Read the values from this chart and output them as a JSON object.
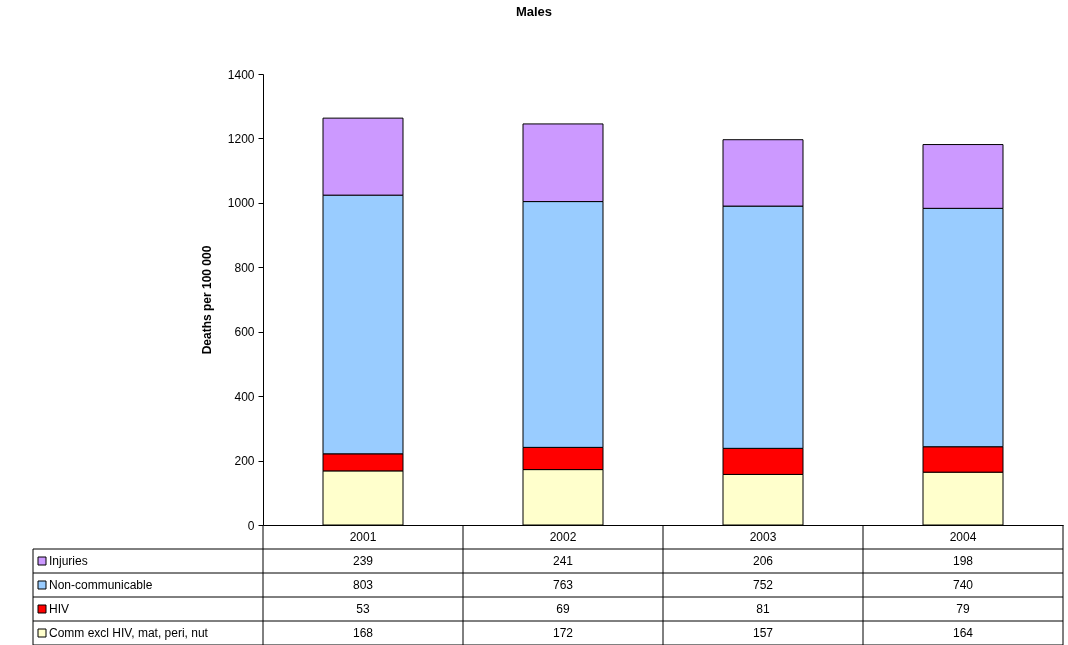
{
  "chart_data": {
    "type": "bar",
    "title": "Males",
    "ylabel": "Deaths per 100 000",
    "categories": [
      "2001",
      "2002",
      "2003",
      "2004"
    ],
    "series": [
      {
        "name": "Comm excl HIV, mat, peri, nut",
        "color": "#ffffcc",
        "values": [
          168,
          172,
          157,
          164
        ]
      },
      {
        "name": "HIV",
        "color": "#ff0000",
        "values": [
          53,
          69,
          81,
          79
        ]
      },
      {
        "name": "Non-communicable",
        "color": "#99ccff",
        "values": [
          803,
          763,
          752,
          740
        ]
      },
      {
        "name": "Injuries",
        "color": "#cc99ff",
        "values": [
          239,
          241,
          206,
          198
        ]
      }
    ],
    "stacked": true,
    "ylim": [
      0,
      1400
    ],
    "yticks": [
      0,
      200,
      400,
      600,
      800,
      1000,
      1200,
      1400
    ],
    "data_labels": true,
    "legend": "bottom left"
  }
}
